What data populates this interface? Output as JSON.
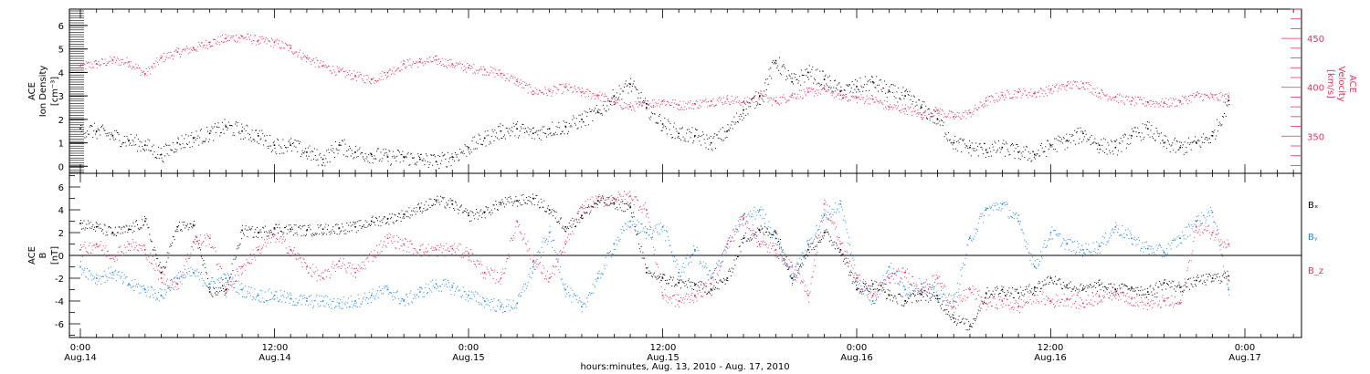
{
  "colors": {
    "black": "#000000",
    "red": "#e8325a",
    "blue": "#1e88e5"
  },
  "chart_data": [
    {
      "type": "scatter",
      "panel": "top",
      "ylabel_left": [
        "ACE",
        "Ion Density",
        "[cm⁻³]"
      ],
      "ylabel_right": [
        "ACE",
        "Velocity",
        "[km/s]"
      ],
      "ylim_left": [
        -0.3,
        6.7
      ],
      "ylim_right": [
        312,
        480
      ],
      "yticks_left": [
        0,
        1,
        2,
        3,
        4,
        5,
        6
      ],
      "yticks_right": [
        350,
        400,
        450
      ],
      "series": [
        {
          "axis": "left",
          "color": "#000000",
          "x": [
            0,
            1,
            2,
            3,
            4,
            5,
            6,
            7,
            8,
            9,
            10,
            11,
            12,
            13,
            14,
            15,
            16,
            17,
            18,
            19,
            20,
            21,
            22,
            23,
            24,
            25,
            26,
            27,
            28,
            29,
            30,
            31,
            32,
            33,
            34,
            35,
            36,
            37,
            38,
            39,
            40,
            41,
            42,
            43,
            44,
            45,
            46,
            47,
            48,
            49,
            50,
            51,
            52,
            53,
            54,
            55,
            56,
            57,
            58,
            59,
            60,
            61,
            62,
            63,
            64,
            65,
            66,
            67,
            68,
            69,
            70,
            71
          ],
          "values": [
            1.6,
            1.5,
            1.3,
            1.1,
            0.9,
            0.5,
            1.0,
            1.2,
            1.4,
            1.7,
            1.5,
            1.3,
            0.9,
            0.9,
            0.6,
            0.3,
            0.9,
            0.6,
            0.5,
            0.4,
            0.4,
            0.3,
            0.2,
            0.4,
            0.8,
            1.2,
            1.5,
            1.6,
            1.4,
            1.6,
            1.7,
            2.0,
            2.3,
            3.0,
            3.5,
            2.5,
            1.8,
            1.4,
            1.3,
            1.0,
            1.5,
            2.4,
            3.0,
            4.5,
            3.6,
            4.0,
            3.7,
            3.2,
            3.4,
            3.6,
            3.2,
            3.0,
            2.5,
            2.0,
            1.0,
            0.8,
            0.7,
            0.8,
            0.6,
            0.5,
            0.9,
            1.1,
            1.4,
            0.9,
            0.8,
            1.3,
            1.6,
            1.0,
            0.8,
            1.0,
            1.3,
            2.8
          ]
        },
        {
          "axis": "right",
          "color": "#e8325a",
          "x": [
            0,
            1,
            2,
            3,
            4,
            5,
            6,
            7,
            8,
            9,
            10,
            11,
            12,
            13,
            14,
            15,
            16,
            17,
            18,
            19,
            20,
            21,
            22,
            23,
            24,
            25,
            26,
            27,
            28,
            29,
            30,
            31,
            32,
            33,
            34,
            35,
            36,
            37,
            38,
            39,
            40,
            41,
            42,
            43,
            44,
            45,
            46,
            47,
            48,
            49,
            50,
            51,
            52,
            53,
            54,
            55,
            56,
            57,
            58,
            59,
            60,
            61,
            62,
            63,
            64,
            65,
            66,
            67,
            68,
            69,
            70,
            71
          ],
          "values": [
            422,
            424,
            428,
            426,
            414,
            430,
            436,
            440,
            446,
            450,
            452,
            448,
            446,
            440,
            430,
            422,
            416,
            412,
            408,
            415,
            424,
            426,
            428,
            424,
            420,
            418,
            414,
            406,
            396,
            396,
            400,
            395,
            392,
            385,
            380,
            383,
            386,
            382,
            383,
            386,
            388,
            385,
            390,
            386,
            392,
            395,
            398,
            392,
            389,
            388,
            380,
            378,
            372,
            376,
            370,
            374,
            386,
            392,
            395,
            394,
            398,
            402,
            404,
            394,
            390,
            386,
            385,
            384,
            386,
            392,
            390,
            390
          ]
        }
      ]
    },
    {
      "type": "scatter",
      "panel": "bottom",
      "ylabel_left": [
        "ACE",
        "B",
        "[nT]"
      ],
      "ylim": [
        -7.2,
        7.2
      ],
      "yticks": [
        -6,
        -4,
        -2,
        0,
        2,
        4,
        6
      ],
      "series": [
        {
          "name": "Bₓ",
          "color": "#000000",
          "x": [
            0,
            1,
            2,
            3,
            4,
            5,
            6,
            7,
            8,
            9,
            10,
            11,
            12,
            13,
            14,
            15,
            16,
            17,
            18,
            19,
            20,
            21,
            22,
            23,
            24,
            25,
            26,
            27,
            28,
            29,
            30,
            31,
            32,
            33,
            34,
            35,
            36,
            37,
            38,
            39,
            40,
            41,
            42,
            43,
            44,
            45,
            46,
            47,
            48,
            49,
            50,
            51,
            52,
            53,
            54,
            55,
            56,
            57,
            58,
            59,
            60,
            61,
            62,
            63,
            64,
            65,
            66,
            67,
            68,
            69,
            70,
            71
          ],
          "values": [
            2.8,
            2.5,
            2.0,
            2.3,
            3.0,
            -1.5,
            2.5,
            2.6,
            -3.2,
            -3.0,
            2.2,
            2.0,
            2.4,
            2.3,
            2.2,
            2.3,
            2.4,
            2.5,
            3.0,
            3.2,
            3.6,
            4.2,
            4.8,
            4.5,
            3.5,
            3.8,
            4.6,
            4.8,
            5.0,
            4.0,
            2.5,
            3.5,
            4.8,
            4.6,
            4.2,
            -1.5,
            -2.0,
            -2.4,
            -2.6,
            -3.0,
            -2.0,
            1.5,
            2.2,
            2.0,
            -2.0,
            0.5,
            2.0,
            0.5,
            -3.0,
            -2.5,
            -3.5,
            -4.0,
            -3.4,
            -3.8,
            -5.5,
            -6.2,
            -3.3,
            -3.0,
            -3.3,
            -2.8,
            -2.0,
            -2.6,
            -3.0,
            -2.6,
            -3.0,
            -2.8,
            -3.2,
            -2.4,
            -2.8,
            -2.2,
            -2.0,
            -1.8
          ]
        },
        {
          "name": "Bᵧ",
          "color": "#1e88e5",
          "x": [
            0,
            1,
            2,
            3,
            4,
            5,
            6,
            7,
            8,
            9,
            10,
            11,
            12,
            13,
            14,
            15,
            16,
            17,
            18,
            19,
            20,
            21,
            22,
            23,
            24,
            25,
            26,
            27,
            28,
            29,
            30,
            31,
            32,
            33,
            34,
            35,
            36,
            37,
            38,
            39,
            40,
            41,
            42,
            43,
            44,
            45,
            46,
            47,
            48,
            49,
            50,
            51,
            52,
            53,
            54,
            55,
            56,
            57,
            58,
            59,
            60,
            61,
            62,
            63,
            64,
            65,
            66,
            67,
            68,
            69,
            70,
            71
          ],
          "values": [
            -1.0,
            -2.0,
            -1.5,
            -2.5,
            -3.0,
            -3.5,
            -2.0,
            -1.5,
            -2.5,
            -2.0,
            -3.0,
            -3.5,
            -3.5,
            -3.8,
            -4.0,
            -4.0,
            -4.2,
            -4.0,
            -3.5,
            -3.0,
            -4.0,
            -3.2,
            -2.5,
            -2.8,
            -3.5,
            -4.0,
            -4.5,
            -4.2,
            -1.0,
            2.0,
            -3.0,
            -4.5,
            -2.0,
            1.0,
            3.0,
            2.0,
            2.5,
            -1.5,
            0.5,
            -2.0,
            1.0,
            3.2,
            4.0,
            1.5,
            -2.0,
            1.0,
            3.5,
            4.5,
            -2.0,
            -4.0,
            -1.0,
            -3.0,
            -2.5,
            -3.5,
            -4.0,
            1.5,
            4.0,
            4.5,
            3.0,
            -1.0,
            2.0,
            1.0,
            0.5,
            0.8,
            2.5,
            1.5,
            0.6,
            0.3,
            1.5,
            3.0,
            3.8,
            -3.0
          ]
        },
        {
          "name": "B_z",
          "color": "#e8325a",
          "x": [
            0,
            1,
            2,
            3,
            4,
            5,
            6,
            7,
            8,
            9,
            10,
            11,
            12,
            13,
            14,
            15,
            16,
            17,
            18,
            19,
            20,
            21,
            22,
            23,
            24,
            25,
            26,
            27,
            28,
            29,
            30,
            31,
            32,
            33,
            34,
            35,
            36,
            37,
            38,
            39,
            40,
            41,
            42,
            43,
            44,
            45,
            46,
            47,
            48,
            49,
            50,
            51,
            52,
            53,
            54,
            55,
            56,
            57,
            58,
            59,
            60,
            61,
            62,
            63,
            64,
            65,
            66,
            67,
            68,
            69,
            70,
            71
          ],
          "values": [
            0.5,
            1.0,
            0.0,
            1.0,
            0.5,
            -2.0,
            -2.5,
            1.2,
            1.5,
            -3.0,
            -1.0,
            0.5,
            1.8,
            0.5,
            -1.0,
            -2.0,
            -0.5,
            -1.5,
            0.0,
            1.5,
            1.0,
            0.5,
            0.5,
            0.6,
            0.2,
            -1.5,
            -2.0,
            3.0,
            -0.5,
            -2.0,
            1.0,
            4.2,
            4.8,
            5.0,
            5.2,
            4.0,
            -3.5,
            -4.0,
            -3.5,
            -2.5,
            1.0,
            3.5,
            1.0,
            0.5,
            -1.0,
            -3.5,
            4.5,
            1.0,
            -2.0,
            -3.5,
            -2.0,
            -1.5,
            -3.0,
            -2.0,
            -4.5,
            -3.0,
            -4.2,
            -4.0,
            -4.5,
            -3.5,
            -4.0,
            -3.8,
            -4.2,
            -3.6,
            -3.2,
            -3.8,
            -4.2,
            -4.0,
            -4.2,
            2.5,
            2.0,
            1.0
          ]
        }
      ]
    }
  ],
  "x_axis": {
    "hour_labels": [
      "0:00",
      "12:00",
      "0:00",
      "12:00",
      "0:00",
      "12:00",
      "0:00"
    ],
    "day_labels": [
      "Aug.14",
      "Aug.14",
      "Aug.15",
      "Aug.15",
      "Aug.16",
      "Aug.16",
      "Aug.17"
    ],
    "title": "hours:minutes, Aug. 13, 2010 - Aug. 17, 2010"
  }
}
